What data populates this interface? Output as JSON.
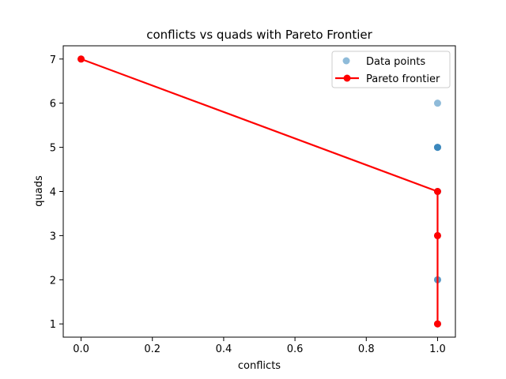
{
  "chart_data": {
    "type": "scatter",
    "title": "conflicts vs quads with Pareto Frontier",
    "xlabel": "conflicts",
    "ylabel": "quads",
    "xlim": [
      -0.05,
      1.05
    ],
    "ylim": [
      0.7,
      7.3
    ],
    "xticks": [
      {
        "value": 0.0,
        "label": "0.0"
      },
      {
        "value": 0.2,
        "label": "0.2"
      },
      {
        "value": 0.4,
        "label": "0.4"
      },
      {
        "value": 0.6,
        "label": "0.6"
      },
      {
        "value": 0.8,
        "label": "0.8"
      },
      {
        "value": 1.0,
        "label": "1.0"
      }
    ],
    "yticks": [
      {
        "value": 1,
        "label": "1"
      },
      {
        "value": 2,
        "label": "2"
      },
      {
        "value": 3,
        "label": "3"
      },
      {
        "value": 4,
        "label": "4"
      },
      {
        "value": 5,
        "label": "5"
      },
      {
        "value": 6,
        "label": "6"
      },
      {
        "value": 7,
        "label": "7"
      }
    ],
    "grid": false,
    "legend_position": "top-right",
    "series": [
      {
        "name": "Data points",
        "kind": "scatter",
        "color": "#1f77b4",
        "alpha": 0.5,
        "points": [
          {
            "x": 0,
            "y": 7
          },
          {
            "x": 1,
            "y": 6
          },
          {
            "x": 1,
            "y": 5
          },
          {
            "x": 1,
            "y": 5
          },
          {
            "x": 1,
            "y": 5
          },
          {
            "x": 1,
            "y": 4
          },
          {
            "x": 1,
            "y": 4
          },
          {
            "x": 1,
            "y": 3
          },
          {
            "x": 1,
            "y": 2
          },
          {
            "x": 1,
            "y": 2
          },
          {
            "x": 1,
            "y": 1
          }
        ]
      },
      {
        "name": "Pareto frontier",
        "kind": "line",
        "color": "#ff0000",
        "points": [
          {
            "x": 0,
            "y": 7
          },
          {
            "x": 1,
            "y": 4
          },
          {
            "x": 1,
            "y": 3
          },
          {
            "x": 1,
            "y": 1
          }
        ]
      }
    ]
  }
}
